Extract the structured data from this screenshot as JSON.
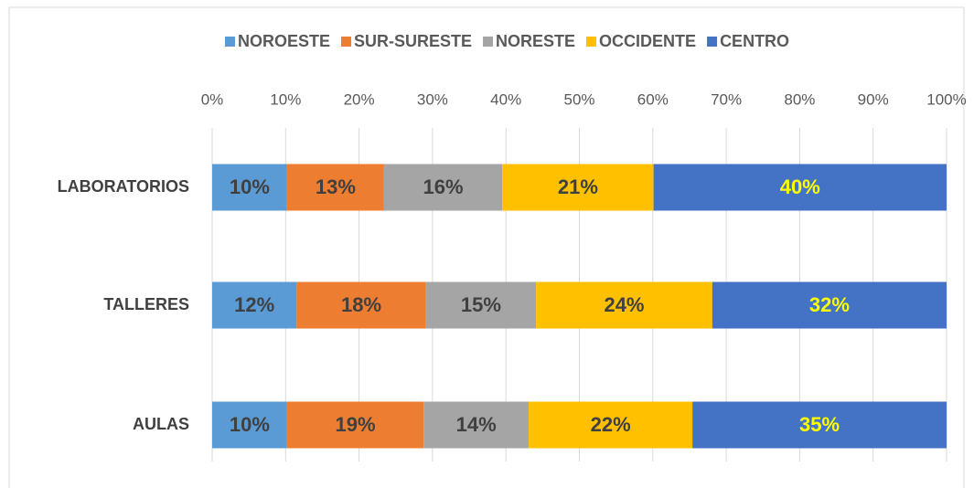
{
  "chart_data": {
    "type": "stacked_barh",
    "categories": [
      "LABORATORIOS",
      "TALLERES",
      "AULAS"
    ],
    "series": [
      {
        "name": "NOROESTE",
        "color": "#5b9bd5",
        "label_color": "#404040",
        "values": [
          10.2,
          11.5,
          10.2
        ],
        "value_labels": [
          "10%",
          "12%",
          "10%"
        ]
      },
      {
        "name": "SUR-SURESTE",
        "color": "#ed7d31",
        "label_color": "#404040",
        "values": [
          13.2,
          17.6,
          18.6
        ],
        "value_labels": [
          "13%",
          "18%",
          "19%"
        ]
      },
      {
        "name": "NORESTE",
        "color": "#a5a5a5",
        "label_color": "#404040",
        "values": [
          16.1,
          15.0,
          14.3
        ],
        "value_labels": [
          "16%",
          "15%",
          "14%"
        ]
      },
      {
        "name": "OCCIDENTE",
        "color": "#ffc000",
        "label_color": "#404040",
        "values": [
          20.6,
          24.0,
          22.3
        ],
        "value_labels": [
          "21%",
          "24%",
          "22%"
        ]
      },
      {
        "name": "CENTRO",
        "color": "#4472c4",
        "label_color": "#ffff00",
        "values": [
          39.9,
          31.9,
          34.6
        ],
        "value_labels": [
          "40%",
          "32%",
          "35%"
        ]
      }
    ],
    "xlim": [
      0,
      100
    ],
    "xticks": [
      {
        "value": 0,
        "label": "0%"
      },
      {
        "value": 10,
        "label": "10%"
      },
      {
        "value": 20,
        "label": "20%"
      },
      {
        "value": 30,
        "label": "30%"
      },
      {
        "value": 40,
        "label": "40%"
      },
      {
        "value": 50,
        "label": "50%"
      },
      {
        "value": 60,
        "label": "60%"
      },
      {
        "value": 70,
        "label": "70%"
      },
      {
        "value": 80,
        "label": "80%"
      },
      {
        "value": 90,
        "label": "90%"
      },
      {
        "value": 100,
        "label": "100%"
      }
    ],
    "grid": true,
    "legend": "top"
  }
}
